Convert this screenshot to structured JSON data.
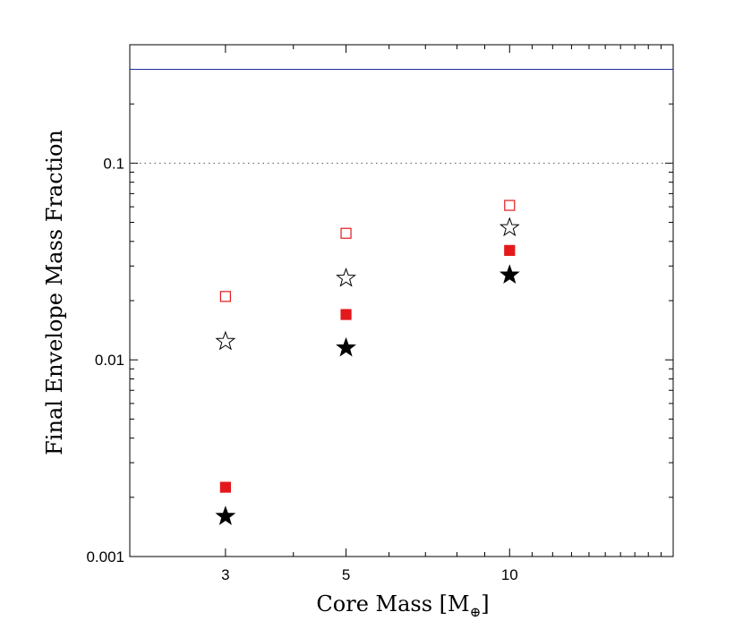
{
  "chart_data": {
    "type": "scatter",
    "title": "",
    "xlabel": "Core Mass [M⊕]",
    "xlabel_main": "Core Mass [M",
    "xlabel_sub": "⊕",
    "xlabel_close": "]",
    "ylabel": "Final Envelope Mass Fraction",
    "xscale": "log",
    "yscale": "log",
    "xlim": [
      2,
      20
    ],
    "ylim": [
      0.001,
      0.4
    ],
    "x_tick_labels": [
      {
        "value": 3,
        "label": "3"
      },
      {
        "value": 5,
        "label": "5"
      },
      {
        "value": 10,
        "label": "10"
      }
    ],
    "y_tick_labels": [
      {
        "value": 0.001,
        "label": "0.001"
      },
      {
        "value": 0.01,
        "label": "0.01"
      },
      {
        "value": 0.1,
        "label": "0.1"
      }
    ],
    "reference_lines": [
      {
        "name": "solid-blue-line",
        "y": 0.3,
        "style": "solid",
        "color": "#1f2fa8"
      },
      {
        "name": "dotted-line",
        "y": 0.1,
        "style": "dotted",
        "color": "#555555"
      }
    ],
    "series": [
      {
        "name": "open-red-square",
        "marker": "square-open",
        "color": "#e3191c",
        "x": [
          3,
          5,
          10
        ],
        "y": [
          0.021,
          0.044,
          0.061
        ]
      },
      {
        "name": "open-black-star",
        "marker": "star-open",
        "color": "#000000",
        "x": [
          3,
          5,
          10
        ],
        "y": [
          0.0124,
          0.026,
          0.047
        ]
      },
      {
        "name": "filled-red-square",
        "marker": "square-filled",
        "color": "#e3191c",
        "x": [
          3,
          5,
          10
        ],
        "y": [
          0.00225,
          0.017,
          0.036
        ]
      },
      {
        "name": "filled-black-star",
        "marker": "star-filled",
        "color": "#000000",
        "x": [
          3,
          5,
          10
        ],
        "y": [
          0.0016,
          0.0115,
          0.027
        ]
      }
    ]
  }
}
